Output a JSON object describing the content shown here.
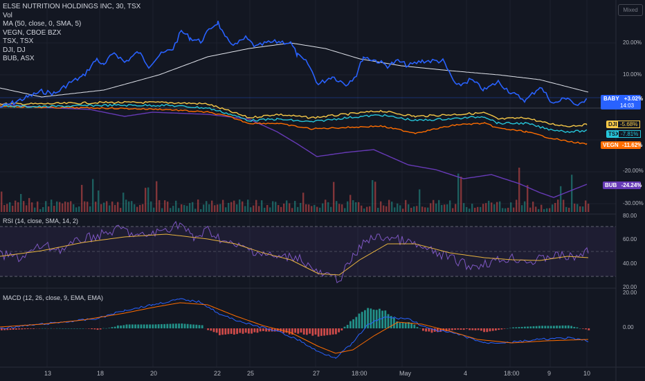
{
  "legend": {
    "symbol": "ELSE NUTRITION HOLDINGS INC, 30, TSX",
    "lines": [
      "Vol",
      "MA (50, close, 0, SMA, 5)",
      "VEGN, CBOE BZX",
      "TSX, TSX",
      "DJI, DJ",
      "BUB, ASX"
    ]
  },
  "scale_mode": "Mixed",
  "rsi_title": "RSI (14, close, SMA, 14, 2)",
  "macd_title": "MACD (12, 26, close, 9, EMA, EMA)",
  "main_axis": [
    "20.00%",
    "10.00%",
    "-20.00%",
    "-30.00%"
  ],
  "rsi_axis": [
    "80.00",
    "60.00",
    "40.00",
    "20.00"
  ],
  "macd_axis": [
    "20.00",
    "0.00"
  ],
  "x_axis": [
    "13",
    "18",
    "20",
    "22",
    "25",
    "27",
    "18:00",
    "May",
    "4",
    "18:00",
    "9",
    "10"
  ],
  "badges": {
    "baby": {
      "name": "BABY",
      "value": "+3.02%",
      "time": "14:03"
    },
    "dji": {
      "name": "DJI",
      "value": "-5.68%"
    },
    "tsx": {
      "name": "TSX",
      "value": "-7.81%"
    },
    "vegn": {
      "name": "VEGN",
      "value": "-11.62%"
    },
    "bub": {
      "name": "BUB",
      "value": "-24.24%"
    }
  },
  "colors": {
    "baby": "#2962ff",
    "ma": "#e0e3eb",
    "dji": "#f7c948",
    "tsx": "#26c6da",
    "vegn": "#ff6d00",
    "bub": "#673ab7",
    "rsi": "#7e57c2",
    "rsi_ma": "#e8b33f",
    "macd": "#2962ff",
    "signal": "#ff6d00",
    "up": "#26a69a",
    "down": "#ef5350"
  }
}
